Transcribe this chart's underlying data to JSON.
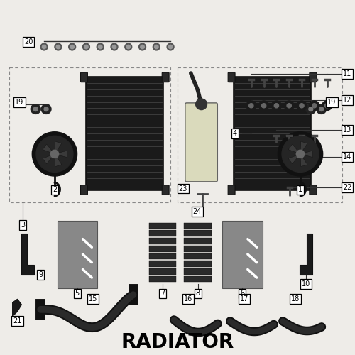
{
  "title": "RADIATOR",
  "bg_color": "#eeece8",
  "title_fontsize": 20,
  "fig_w": 5.0,
  "fig_h": 5.0,
  "dpi": 100
}
